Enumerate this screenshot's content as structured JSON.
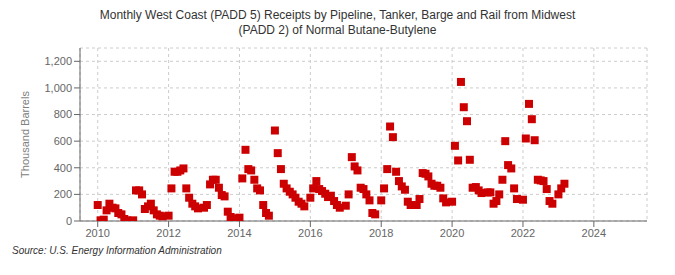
{
  "chart_data": {
    "type": "scatter",
    "title": "Monthly West Coast (PADD 5) Receipts by Pipeline, Tanker, Barge and Rail from Midwest\n(PADD 2) of Normal Butane-Butylene",
    "ylabel": "Thousand Barrels",
    "annotations": [
      "Source: U.S. Energy Information Administration"
    ],
    "color": "#cc0000",
    "marker": "square",
    "grid": true,
    "xlim": [
      2009.5,
      2025.5
    ],
    "ylim": [
      0,
      1300
    ],
    "xticks": [
      2010,
      2012,
      2014,
      2016,
      2018,
      2020,
      2022,
      2024
    ],
    "yticks": [
      0,
      200,
      400,
      600,
      800,
      {
        "value": 1000,
        "label": "1,000"
      },
      {
        "value": 1200,
        "label": "1,200"
      }
    ],
    "x": [
      2010.0,
      2010.08,
      2010.17,
      2010.25,
      2010.33,
      2010.42,
      2010.5,
      2010.58,
      2010.67,
      2010.75,
      2010.83,
      2011.0,
      2011.08,
      2011.17,
      2011.25,
      2011.33,
      2011.42,
      2011.5,
      2011.58,
      2011.67,
      2011.75,
      2011.83,
      2012.0,
      2012.08,
      2012.17,
      2012.25,
      2012.33,
      2012.42,
      2012.5,
      2012.58,
      2012.67,
      2012.75,
      2012.83,
      2013.0,
      2013.08,
      2013.17,
      2013.25,
      2013.33,
      2013.42,
      2013.5,
      2013.58,
      2013.67,
      2013.75,
      2013.83,
      2014.0,
      2014.08,
      2014.17,
      2014.25,
      2014.33,
      2014.42,
      2014.5,
      2014.58,
      2014.67,
      2014.75,
      2014.83,
      2015.0,
      2015.08,
      2015.17,
      2015.25,
      2015.33,
      2015.42,
      2015.5,
      2015.58,
      2015.67,
      2015.75,
      2015.83,
      2016.0,
      2016.08,
      2016.17,
      2016.25,
      2016.33,
      2016.42,
      2016.5,
      2016.58,
      2016.67,
      2016.75,
      2016.83,
      2017.0,
      2017.08,
      2017.17,
      2017.25,
      2017.33,
      2017.42,
      2017.5,
      2017.58,
      2017.67,
      2017.75,
      2017.83,
      2018.0,
      2018.08,
      2018.17,
      2018.25,
      2018.33,
      2018.42,
      2018.5,
      2018.58,
      2018.67,
      2018.75,
      2018.83,
      2019.0,
      2019.08,
      2019.17,
      2019.25,
      2019.33,
      2019.42,
      2019.5,
      2019.58,
      2019.67,
      2019.75,
      2019.83,
      2020.0,
      2020.08,
      2020.17,
      2020.25,
      2020.33,
      2020.42,
      2020.5,
      2020.58,
      2020.67,
      2020.75,
      2020.83,
      2021.0,
      2021.08,
      2021.17,
      2021.25,
      2021.33,
      2021.42,
      2021.5,
      2021.58,
      2021.67,
      2021.75,
      2021.83,
      2022.0,
      2022.08,
      2022.17,
      2022.25,
      2022.33,
      2022.42,
      2022.5,
      2022.58,
      2022.67,
      2022.75,
      2022.83,
      2023.0,
      2023.08,
      2023.17
    ],
    "values": [
      120,
      5,
      10,
      80,
      130,
      100,
      95,
      60,
      50,
      15,
      5,
      5,
      230,
      230,
      200,
      90,
      110,
      130,
      80,
      50,
      40,
      35,
      40,
      245,
      370,
      370,
      380,
      395,
      245,
      175,
      130,
      110,
      95,
      100,
      120,
      275,
      310,
      310,
      250,
      195,
      185,
      70,
      30,
      20,
      25,
      320,
      535,
      390,
      380,
      310,
      245,
      230,
      120,
      60,
      40,
      680,
      510,
      390,
      280,
      245,
      220,
      200,
      175,
      145,
      130,
      110,
      175,
      245,
      300,
      240,
      225,
      205,
      180,
      190,
      150,
      120,
      100,
      115,
      200,
      480,
      410,
      380,
      250,
      240,
      200,
      155,
      60,
      50,
      155,
      245,
      390,
      710,
      630,
      370,
      300,
      260,
      235,
      145,
      120,
      120,
      165,
      360,
      355,
      335,
      280,
      265,
      265,
      250,
      170,
      140,
      145,
      565,
      455,
      1045,
      855,
      750,
      460,
      250,
      255,
      230,
      210,
      215,
      215,
      130,
      150,
      200,
      310,
      600,
      420,
      395,
      245,
      165,
      160,
      620,
      880,
      765,
      607,
      310,
      305,
      300,
      240,
      150,
      130,
      200,
      245,
      280
    ]
  }
}
